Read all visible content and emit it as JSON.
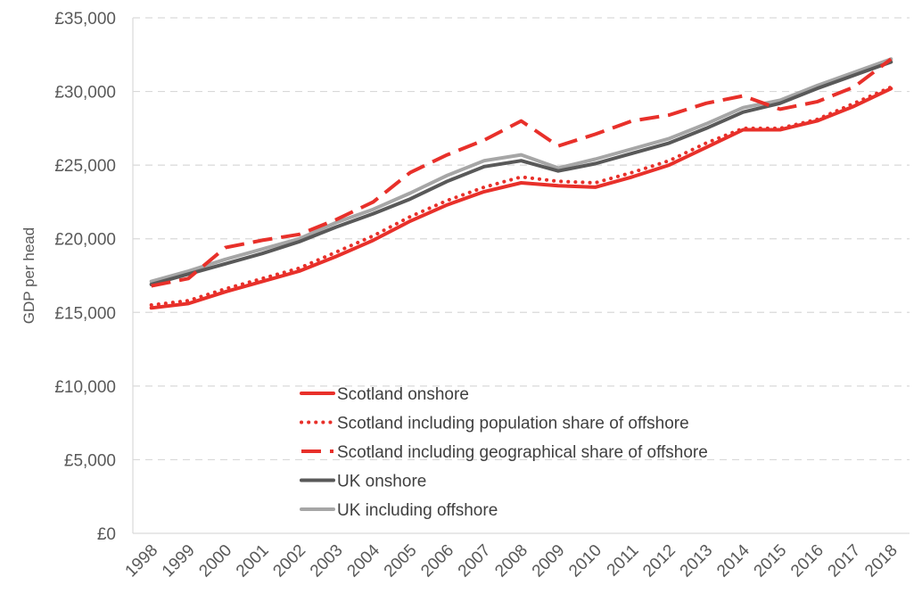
{
  "chart_data": {
    "type": "line",
    "title": "",
    "xlabel": "",
    "ylabel": "GDP per head",
    "ylim": [
      0,
      35000
    ],
    "yticks": [
      0,
      5000,
      10000,
      15000,
      20000,
      25000,
      30000,
      35000
    ],
    "ytick_labels": [
      "£0",
      "£5,000",
      "£10,000",
      "£15,000",
      "£20,000",
      "£25,000",
      "£30,000",
      "£35,000"
    ],
    "grid": "horizontal dashed",
    "legend_position": "bottom-center inside plot",
    "x": [
      "1998",
      "1999",
      "2000",
      "2001",
      "2002",
      "2003",
      "2004",
      "2005",
      "2006",
      "2007",
      "2008",
      "2009",
      "2010",
      "2011",
      "2012",
      "2013",
      "2014",
      "2015",
      "2016",
      "2017",
      "2018"
    ],
    "series": [
      {
        "name": "Scotland onshore",
        "color": "#e8302a",
        "style": "solid",
        "values": [
          15300,
          15600,
          16400,
          17100,
          17800,
          18800,
          19900,
          21200,
          22300,
          23200,
          23800,
          23600,
          23500,
          24200,
          25000,
          26200,
          27400,
          27400,
          28000,
          29000,
          30200
        ]
      },
      {
        "name": "Scotland including population share of offshore",
        "color": "#e8302a",
        "style": "dotted",
        "values": [
          15500,
          15800,
          16600,
          17300,
          18000,
          19100,
          20200,
          21500,
          22600,
          23500,
          24200,
          23900,
          23800,
          24500,
          25300,
          26500,
          27500,
          27500,
          28100,
          29200,
          30300
        ]
      },
      {
        "name": "Scotland including geographical share of offshore",
        "color": "#e8302a",
        "style": "dashed",
        "values": [
          16800,
          17300,
          19400,
          19900,
          20300,
          21300,
          22500,
          24500,
          25700,
          26700,
          28000,
          26300,
          27100,
          28000,
          28400,
          29200,
          29700,
          28800,
          29300,
          30300,
          32200
        ]
      },
      {
        "name": "UK onshore",
        "color": "#595959",
        "style": "solid",
        "values": [
          16900,
          17600,
          18300,
          19000,
          19800,
          20800,
          21700,
          22700,
          23900,
          24900,
          25300,
          24600,
          25100,
          25800,
          26500,
          27500,
          28600,
          29200,
          30200,
          31100,
          32000
        ]
      },
      {
        "name": "UK including offshore",
        "color": "#a6a6a6",
        "style": "solid",
        "values": [
          17100,
          17800,
          18600,
          19300,
          20000,
          21100,
          22000,
          23100,
          24300,
          25300,
          25700,
          24800,
          25400,
          26100,
          26800,
          27800,
          28900,
          29400,
          30400,
          31300,
          32200
        ]
      }
    ]
  }
}
